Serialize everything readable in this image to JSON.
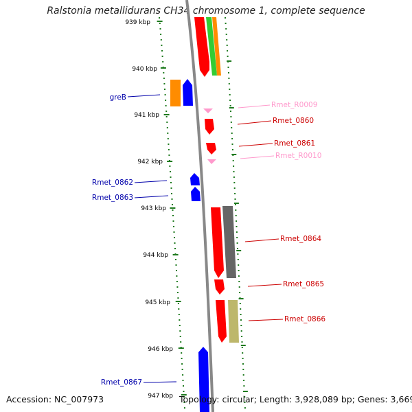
{
  "title": "Ralstonia metallidurans CH34 chromosome 1, complete sequence",
  "footer": {
    "accession": "Accession: NC_007973",
    "topology": "Topology: circular; Length: 3,928,089 bp; Genes: 3,669"
  },
  "colors": {
    "backbone": "#888888",
    "tick": "#1e7a1e",
    "protein_coding": "#ff0000",
    "hypothetical": "#0000ff",
    "rna": "#ff99cc",
    "orange": "#ff8c00",
    "green": "#33cc33",
    "gray": "#666666",
    "khaki": "#bdb76b"
  },
  "scale": {
    "unit": "kbp",
    "ticks": [
      "939 kbp",
      "940 kbp",
      "941 kbp",
      "942 kbp",
      "943 kbp",
      "944 kbp",
      "945 kbp",
      "946 kbp",
      "947 kbp"
    ]
  },
  "gene_labels": [
    {
      "name": "greB",
      "color": "#0000aa"
    },
    {
      "name": "Rmet_R0009",
      "color": "#ff99cc"
    },
    {
      "name": "Rmet_0860",
      "color": "#cc0000"
    },
    {
      "name": "Rmet_0861",
      "color": "#cc0000"
    },
    {
      "name": "Rmet_R0010",
      "color": "#ff99cc"
    },
    {
      "name": "Rmet_0862",
      "color": "#0000aa"
    },
    {
      "name": "Rmet_0863",
      "color": "#0000aa"
    },
    {
      "name": "Rmet_0864",
      "color": "#cc0000"
    },
    {
      "name": "Rmet_0865",
      "color": "#cc0000"
    },
    {
      "name": "Rmet_0866",
      "color": "#cc0000"
    },
    {
      "name": "Rmet_0867",
      "color": "#0000aa"
    }
  ]
}
